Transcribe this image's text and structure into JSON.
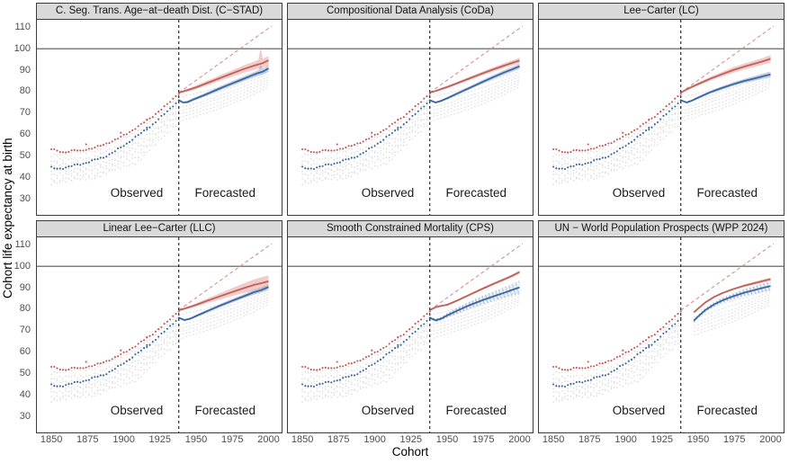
{
  "chart_data": {
    "type": "scatter",
    "xlabel": "Cohort",
    "ylabel": "Cohort life expectancy at birth",
    "x_ticks": [
      1850,
      1875,
      1900,
      1925,
      1950,
      1975,
      2000
    ],
    "y_ticks": [
      30,
      40,
      50,
      60,
      70,
      80,
      90,
      100,
      110
    ],
    "xlim": [
      1840,
      2009
    ],
    "ylim": [
      22.5,
      113.5
    ],
    "legend": "none",
    "grid": "off",
    "annotations": {
      "observed": {
        "label": "Observed",
        "x": 1909,
        "y": 32.5
      },
      "forecasted": {
        "label": "Forecasted",
        "x": 1970,
        "y": 32.5
      }
    },
    "reference": {
      "hline_y": 100,
      "vline_x": 1938,
      "diagonal": {
        "x": [
          1938,
          2002
        ],
        "y": [
          79.5,
          110.5
        ]
      }
    },
    "colors": {
      "red": "#c25f59",
      "red_points": "#c3554f",
      "red_band": "#e08f88",
      "blue": "#3a66a0",
      "blue_points": "#35639c",
      "blue_band": "#7d9cc3",
      "fan": "#9db0cc",
      "gray_points": "#d9d9d9",
      "gray_lines": "#dedede",
      "trend": "#d4949c",
      "hline": "#555555",
      "vline": "#1a1a1a",
      "text": "#1a1a1a",
      "tick": "#4d4d4d",
      "strip_bg": "#d9d9d9",
      "border": "#3c3c3c"
    },
    "observed": {
      "x_start": 1850,
      "x_step": 4,
      "red": [
        53.2,
        52.3,
        51.6,
        52.1,
        52.7,
        52.2,
        53.0,
        53.6,
        54.3,
        55.1,
        56.3,
        57.5,
        58.8,
        60.3,
        62.0,
        63.8,
        65.6,
        67.4,
        69.6,
        71.8,
        74.0,
        76.6,
        79.3
      ],
      "blue": [
        44.6,
        44.0,
        44.3,
        44.9,
        45.7,
        46.1,
        46.8,
        47.7,
        48.6,
        49.3,
        50.7,
        52.2,
        53.9,
        55.7,
        57.7,
        59.7,
        61.6,
        63.5,
        65.9,
        68.3,
        70.8,
        73.4,
        75.8
      ]
    },
    "observed_outliers": {
      "red": [
        [
          1898,
          60.8
        ],
        [
          1916,
          66.9
        ],
        [
          1874,
          55.4
        ]
      ],
      "blue": [
        [
          1916,
          63.2
        ]
      ]
    },
    "gray_series": {
      "x": [
        1850,
        1880,
        1910,
        1938,
        1950,
        1975,
        2000
      ],
      "values": [
        [
          50.5,
          52.5,
          61.5,
          77.3,
          79.0,
          84.0,
          89.3
        ],
        [
          47.5,
          49.5,
          58.5,
          74.5,
          76.5,
          82.0,
          88.0
        ],
        [
          45.5,
          47.0,
          56.0,
          72.5,
          74.5,
          80.2,
          86.8
        ],
        [
          43.0,
          45.0,
          54.0,
          71.0,
          73.0,
          78.8,
          85.6
        ],
        [
          41.0,
          43.5,
          52.0,
          69.5,
          71.5,
          77.2,
          84.6
        ],
        [
          39.0,
          41.5,
          50.0,
          68.0,
          70.0,
          75.7,
          83.4
        ],
        [
          37.5,
          40.0,
          47.5,
          66.0,
          68.5,
          74.2,
          82.2
        ]
      ]
    },
    "facets": [
      {
        "id": "cstad",
        "title": "C. Seg. Trans. Age−at−death Dist. (C−STAD)",
        "fx0": 1938,
        "red": {
          "style": "band",
          "x": [
            1938,
            1942,
            1946,
            1950,
            1958,
            1966,
            1974,
            1982,
            1990,
            1993,
            1994.5,
            1996,
            2000
          ],
          "y": [
            79.5,
            80.3,
            81.1,
            82.0,
            84.1,
            86.2,
            88.3,
            90.3,
            92.1,
            92.7,
            93.0,
            93.3,
            94.6
          ],
          "lo": [
            79.2,
            79.7,
            80.3,
            81.1,
            83.0,
            84.9,
            86.8,
            88.6,
            90.2,
            90.7,
            90.9,
            91.1,
            92.0
          ],
          "hi": [
            79.8,
            80.9,
            81.9,
            82.9,
            85.2,
            87.5,
            89.7,
            92.0,
            94.0,
            94.8,
            100.8,
            95.3,
            96.6
          ]
        },
        "blue": {
          "style": "band",
          "x": [
            1938,
            1941,
            1944,
            1948,
            1956,
            1964,
            1972,
            1980,
            1988,
            1993,
            1994.5,
            1996,
            2000
          ],
          "y": [
            76.0,
            74.9,
            75.1,
            76.3,
            78.5,
            80.8,
            83.0,
            85.2,
            87.4,
            88.7,
            89.0,
            89.3,
            90.8
          ],
          "lo": [
            75.7,
            74.4,
            74.5,
            75.6,
            77.7,
            79.9,
            82.0,
            84.1,
            86.2,
            87.4,
            87.6,
            87.9,
            89.2
          ],
          "hi": [
            76.3,
            75.4,
            75.7,
            77.0,
            79.3,
            81.7,
            84.0,
            86.3,
            88.6,
            90.0,
            92.4,
            90.7,
            92.3
          ]
        }
      },
      {
        "id": "coda",
        "title": "Compositional Data Analysis (CoDa)",
        "fx0": 1938,
        "red": {
          "style": "band",
          "x": [
            1938,
            1942,
            1946,
            1950,
            1958,
            1966,
            1974,
            1982,
            1990,
            1995,
            2000
          ],
          "y": [
            79.5,
            80.3,
            81.2,
            82.1,
            84.2,
            86.3,
            88.4,
            90.4,
            92.3,
            93.4,
            94.5
          ],
          "lo": [
            79.2,
            79.9,
            80.7,
            81.5,
            83.5,
            85.5,
            87.5,
            89.4,
            91.2,
            92.2,
            93.2
          ],
          "hi": [
            79.8,
            80.7,
            81.7,
            82.7,
            84.9,
            87.1,
            89.3,
            91.4,
            93.4,
            94.6,
            95.8
          ]
        },
        "blue": {
          "style": "band",
          "x": [
            1938,
            1942,
            1946,
            1950,
            1958,
            1966,
            1974,
            1982,
            1990,
            1995,
            2000
          ],
          "y": [
            76.0,
            74.9,
            75.7,
            76.9,
            79.4,
            81.9,
            84.4,
            86.8,
            89.1,
            90.4,
            91.8
          ],
          "lo": [
            75.7,
            74.5,
            75.2,
            76.3,
            78.7,
            81.1,
            83.5,
            85.8,
            88.0,
            89.2,
            90.5
          ],
          "hi": [
            76.3,
            75.3,
            76.2,
            77.5,
            80.1,
            82.7,
            85.3,
            87.8,
            90.2,
            91.6,
            93.1
          ]
        }
      },
      {
        "id": "lc",
        "title": "Lee−Carter (LC)",
        "fx0": 1938,
        "red": {
          "style": "band",
          "x": [
            1938,
            1942,
            1946,
            1950,
            1958,
            1966,
            1974,
            1982,
            1990,
            1995,
            2000
          ],
          "y": [
            79.5,
            81.0,
            82.3,
            83.5,
            85.9,
            88.0,
            90.0,
            91.7,
            93.2,
            94.2,
            95.3
          ],
          "lo": [
            79.2,
            80.5,
            81.7,
            82.8,
            85.0,
            86.9,
            88.7,
            90.3,
            91.7,
            92.6,
            93.5
          ],
          "hi": [
            79.8,
            81.5,
            82.9,
            84.2,
            86.8,
            89.1,
            91.3,
            93.1,
            94.7,
            95.8,
            97.1
          ]
        },
        "blue": {
          "style": "band",
          "x": [
            1938,
            1942,
            1946,
            1950,
            1958,
            1966,
            1974,
            1982,
            1990,
            1995,
            2000
          ],
          "y": [
            76.0,
            74.9,
            75.9,
            77.2,
            79.6,
            81.6,
            83.4,
            85.0,
            86.3,
            87.2,
            88.0
          ],
          "lo": [
            75.7,
            74.5,
            75.4,
            76.6,
            78.9,
            80.8,
            82.5,
            84.0,
            85.2,
            86.0,
            86.7
          ],
          "hi": [
            76.3,
            75.3,
            76.4,
            77.8,
            80.3,
            82.4,
            84.3,
            86.0,
            87.4,
            88.4,
            89.3
          ]
        }
      },
      {
        "id": "llc",
        "title": "Linear Lee−Carter (LLC)",
        "fx0": 1938,
        "red": {
          "style": "band",
          "x": [
            1938,
            1942,
            1946,
            1950,
            1958,
            1966,
            1974,
            1982,
            1990,
            1995,
            2000
          ],
          "y": [
            79.5,
            80.3,
            81.1,
            82.0,
            84.0,
            85.9,
            87.8,
            89.6,
            91.3,
            92.1,
            93.0
          ],
          "lo": [
            79.2,
            79.8,
            80.5,
            81.2,
            82.9,
            84.5,
            86.0,
            87.4,
            88.7,
            89.3,
            90.2
          ],
          "hi": [
            79.8,
            80.8,
            81.7,
            82.8,
            85.1,
            87.3,
            89.6,
            91.8,
            93.9,
            94.9,
            95.7
          ]
        },
        "blue": {
          "style": "band",
          "x": [
            1938,
            1942,
            1946,
            1950,
            1958,
            1966,
            1974,
            1982,
            1990,
            1995,
            2000
          ],
          "y": [
            76.0,
            74.9,
            75.6,
            76.8,
            79.2,
            81.5,
            83.7,
            85.8,
            87.9,
            88.9,
            90.3
          ],
          "lo": [
            75.7,
            74.5,
            75.1,
            76.2,
            78.5,
            80.7,
            82.8,
            84.8,
            86.8,
            87.7,
            89.0
          ],
          "hi": [
            76.3,
            75.3,
            76.1,
            77.4,
            79.9,
            82.3,
            84.6,
            86.8,
            89.0,
            90.1,
            91.6
          ]
        }
      },
      {
        "id": "cps",
        "title": "Smooth Constrained Mortality (CPS)",
        "fx0": 1938,
        "red": {
          "style": "band",
          "x": [
            1938,
            1942,
            1946,
            1950,
            1958,
            1966,
            1974,
            1982,
            1990,
            1995,
            2000
          ],
          "y": [
            79.5,
            80.9,
            81.6,
            82.0,
            84.3,
            86.9,
            89.4,
            91.8,
            94.1,
            95.6,
            97.3
          ],
          "lo": [
            79.2,
            80.5,
            81.2,
            81.6,
            83.9,
            86.4,
            88.9,
            91.2,
            93.4,
            94.9,
            96.5
          ],
          "hi": [
            79.8,
            81.3,
            82.0,
            82.5,
            84.8,
            87.4,
            90.0,
            92.4,
            94.8,
            96.3,
            98.1
          ]
        },
        "blue": {
          "style": "fan",
          "x": [
            1938,
            1942,
            1946,
            1950,
            1958,
            1966,
            1974,
            1982,
            1990,
            1995,
            2000
          ],
          "y": [
            76.0,
            74.8,
            75.6,
            77.1,
            79.6,
            82.0,
            84.1,
            86.0,
            87.8,
            89.0,
            90.2
          ],
          "lo": [
            75.6,
            74.2,
            74.9,
            76.2,
            78.4,
            80.5,
            82.3,
            84.0,
            85.5,
            86.4,
            87.3
          ],
          "hi": [
            76.4,
            75.4,
            76.3,
            78.0,
            80.8,
            83.5,
            85.9,
            88.0,
            90.1,
            91.6,
            93.1
          ]
        }
      },
      {
        "id": "wpp",
        "title": "UN − World Population Prospects (WPP 2024)",
        "fx0": 1947,
        "red": {
          "style": "band",
          "x": [
            1947,
            1950,
            1955,
            1961,
            1967,
            1974,
            1982,
            1991,
            2000
          ],
          "y": [
            78.5,
            80.3,
            83.2,
            85.7,
            87.6,
            89.3,
            91.0,
            92.5,
            94.0
          ],
          "lo": [
            78.2,
            80.0,
            82.8,
            85.3,
            87.1,
            88.8,
            90.4,
            91.8,
            93.2
          ],
          "hi": [
            78.8,
            80.6,
            83.6,
            86.1,
            88.1,
            89.8,
            91.6,
            93.2,
            94.8
          ]
        },
        "blue": {
          "style": "fan",
          "x": [
            1947,
            1950,
            1955,
            1961,
            1967,
            1974,
            1982,
            1991,
            2000
          ],
          "y": [
            74.6,
            76.6,
            79.6,
            82.2,
            84.2,
            86.0,
            87.7,
            89.3,
            90.8
          ],
          "lo": [
            74.1,
            76.0,
            78.9,
            81.3,
            83.2,
            84.8,
            86.3,
            87.6,
            88.8
          ],
          "hi": [
            75.1,
            77.2,
            80.3,
            83.1,
            85.2,
            87.2,
            89.1,
            91.0,
            92.8
          ]
        }
      }
    ]
  }
}
